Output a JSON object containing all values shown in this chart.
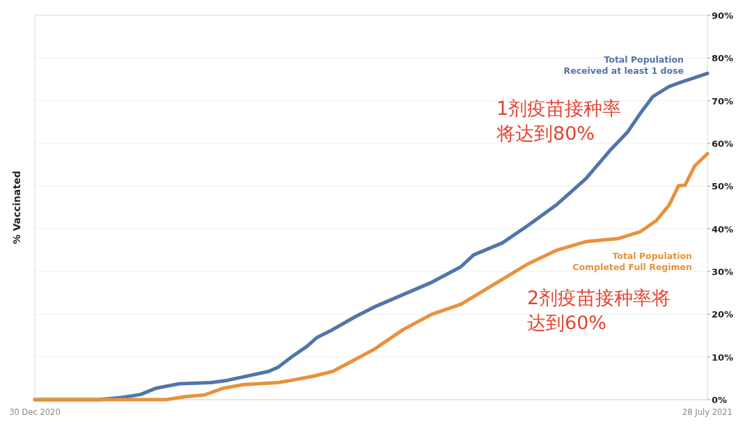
{
  "chart_data": {
    "type": "line",
    "ylabel": "% Vaccinated",
    "xlim": [
      "2020-12-30",
      "2021-07-28"
    ],
    "xticks": [
      {
        "value": "2020-12-30",
        "label": "30 Dec 2020"
      },
      {
        "value": "2021-07-28",
        "label": "28 July 2021"
      }
    ],
    "ylim": [
      0,
      90
    ],
    "yticks": [
      {
        "value": 0,
        "label": "0%"
      },
      {
        "value": 10,
        "label": "10%"
      },
      {
        "value": 20,
        "label": "20%"
      },
      {
        "value": 30,
        "label": "30%"
      },
      {
        "value": 40,
        "label": "40%"
      },
      {
        "value": 50,
        "label": "50%"
      },
      {
        "value": 60,
        "label": "60%"
      },
      {
        "value": 70,
        "label": "70%"
      },
      {
        "value": 80,
        "label": "80%"
      },
      {
        "value": 90,
        "label": "90%"
      }
    ],
    "grid": "y",
    "legend": false,
    "marker": "none",
    "line_style": "solid",
    "series": [
      {
        "name": "Total Population\nReceived at least 1 dose",
        "color": "#5175a8",
        "x": [
          "2020-12-30",
          "2021-01-19",
          "2021-01-26",
          "2021-02-01",
          "2021-02-06",
          "2021-02-13",
          "2021-02-23",
          "2021-02-28",
          "2021-03-13",
          "2021-03-16",
          "2021-03-20",
          "2021-03-25",
          "2021-03-28",
          "2021-04-02",
          "2021-04-09",
          "2021-04-15",
          "2021-04-24",
          "2021-05-03",
          "2021-05-12",
          "2021-05-16",
          "2021-05-25",
          "2021-06-02",
          "2021-06-11",
          "2021-06-20",
          "2021-06-28",
          "2021-07-03",
          "2021-07-07",
          "2021-07-11",
          "2021-07-16",
          "2021-07-20",
          "2021-07-24",
          "2021-07-28"
        ],
        "values": [
          0,
          0,
          0.5,
          1.2,
          2.7,
          3.7,
          4,
          4.5,
          6.6,
          7.6,
          9.9,
          12.5,
          14.5,
          16.4,
          19.4,
          21.7,
          24.6,
          27.5,
          31.1,
          33.9,
          36.7,
          40.8,
          45.7,
          51.7,
          58.7,
          62.6,
          67,
          71,
          73.3,
          74.4,
          75.4,
          76.4
        ]
      },
      {
        "name": "Total Population\nCompleted Full Regimen",
        "color": "#e8923c",
        "x": [
          "2020-12-30",
          "2021-02-09",
          "2021-02-15",
          "2021-02-21",
          "2021-02-27",
          "2021-03-05",
          "2021-03-16",
          "2021-03-20",
          "2021-03-27",
          "2021-04-02",
          "2021-04-07",
          "2021-04-11",
          "2021-04-15",
          "2021-04-24",
          "2021-05-03",
          "2021-05-12",
          "2021-05-16",
          "2021-05-25",
          "2021-06-02",
          "2021-06-11",
          "2021-06-20",
          "2021-06-30",
          "2021-07-07",
          "2021-07-12",
          "2021-07-16",
          "2021-07-19",
          "2021-07-21",
          "2021-07-24",
          "2021-07-28"
        ],
        "values": [
          0,
          0,
          0.7,
          1.1,
          2.7,
          3.5,
          4,
          4.5,
          5.5,
          6.6,
          8.6,
          10.2,
          11.8,
          16.4,
          20,
          22.3,
          24.1,
          28.2,
          31.8,
          35,
          37,
          37.7,
          39.3,
          41.9,
          45.5,
          50.1,
          50.2,
          54.7,
          57.6
        ]
      }
    ],
    "annotations": [
      "1剂疫苗接种率",
      "将达到80%",
      "2剂疫苗接种率将",
      "达到60%"
    ]
  }
}
